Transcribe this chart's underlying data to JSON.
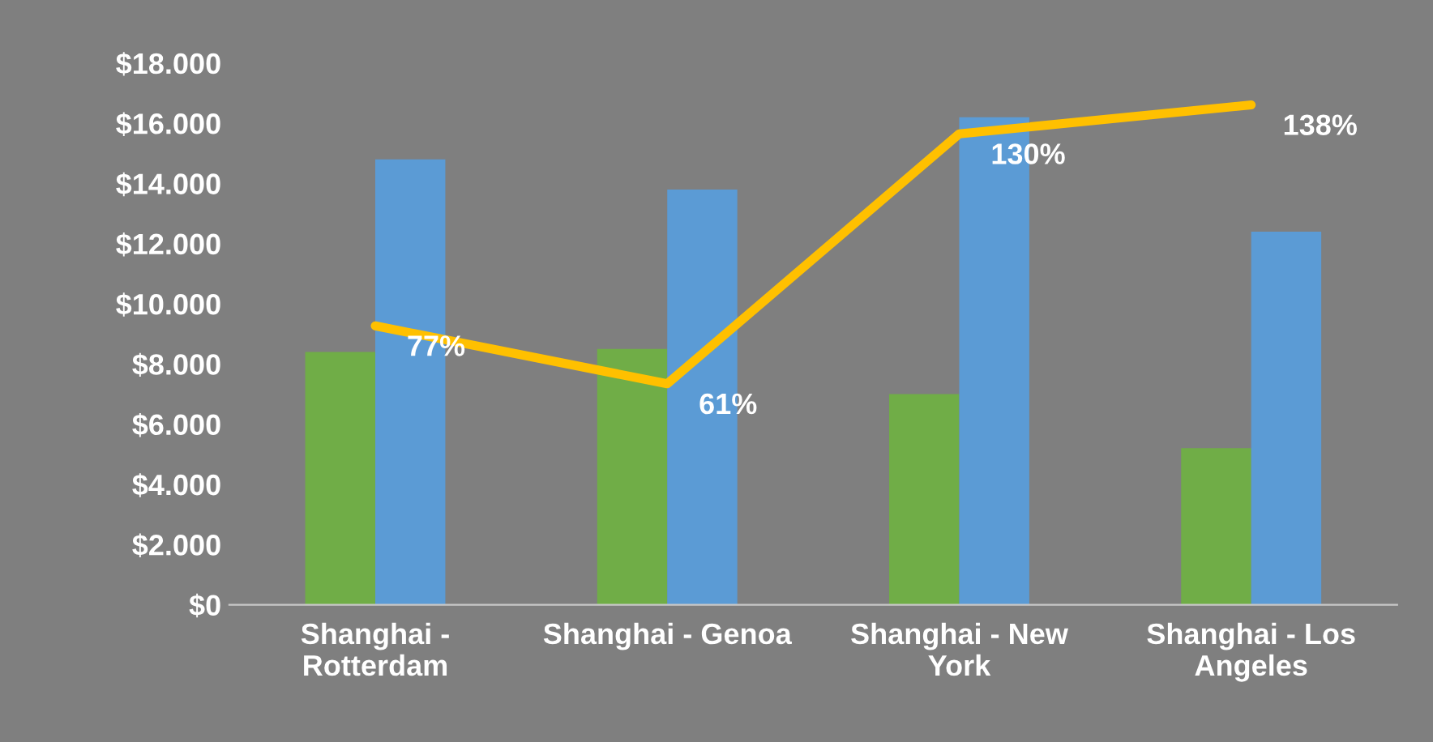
{
  "chart_data": {
    "type": "bar",
    "categories": [
      "Shanghai -\nRotterdam",
      "Shanghai - Genoa",
      "Shanghai - New\nYork",
      "Shanghai - Los\nAngeles"
    ],
    "series": [
      {
        "color": "#70ad47",
        "values": [
          8400,
          8500,
          7000,
          5200
        ]
      },
      {
        "color": "#5b9bd5",
        "values": [
          14800,
          13800,
          16200,
          12400
        ]
      },
      {
        "type": "line",
        "axis": "y2",
        "color": "#ffc000",
        "values": [
          77,
          61,
          130,
          138
        ],
        "value_labels": [
          "77%",
          "61%",
          "130%",
          "138%"
        ]
      }
    ],
    "ylim": [
      0,
      18000
    ],
    "yticks": [
      {
        "value": 0,
        "label": "$0"
      },
      {
        "value": 2000,
        "label": "$2.000"
      },
      {
        "value": 4000,
        "label": "$4.000"
      },
      {
        "value": 6000,
        "label": "$6.000"
      },
      {
        "value": 8000,
        "label": "$8.000"
      },
      {
        "value": 10000,
        "label": "$10.000"
      },
      {
        "value": 12000,
        "label": "$12.000"
      },
      {
        "value": 14000,
        "label": "$14.000"
      },
      {
        "value": 16000,
        "label": "$16.000"
      },
      {
        "value": 18000,
        "label": "$18.000"
      }
    ],
    "grid": false,
    "legend": false
  }
}
